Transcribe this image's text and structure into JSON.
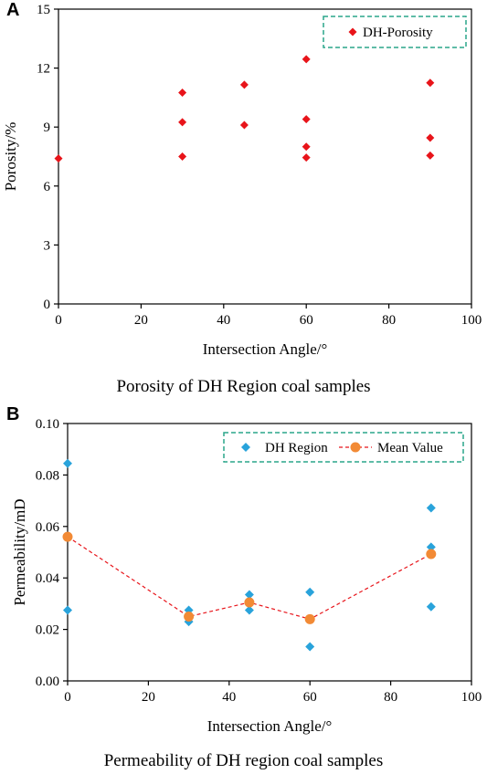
{
  "panels": [
    {
      "letter": "A",
      "caption": "Porosity of DH Region coal samples"
    },
    {
      "letter": "B",
      "caption": "Permeability of DH region coal samples"
    }
  ],
  "colors": {
    "porosity_marker": "#e8141a",
    "region_marker": "#29a3db",
    "mean_marker": "#f28a35",
    "mean_line": "#e8141a",
    "legend_border": "#2aa58a"
  },
  "chart_data": [
    {
      "type": "scatter",
      "xlabel": "Intersection Angle/°",
      "ylabel": "Porosity/%",
      "xlim": [
        0,
        100
      ],
      "ylim": [
        0,
        15
      ],
      "xticks": [
        0,
        20,
        40,
        60,
        80,
        100
      ],
      "yticks": [
        0,
        3,
        6,
        9,
        12,
        15
      ],
      "legend_position": "top-right",
      "grid": false,
      "series": [
        {
          "name": "DH-Porosity",
          "marker": "diamond",
          "points": [
            [
              0,
              7.4
            ],
            [
              30,
              10.75
            ],
            [
              30,
              9.25
            ],
            [
              30,
              7.5
            ],
            [
              45,
              11.15
            ],
            [
              45,
              9.1
            ],
            [
              60,
              12.45
            ],
            [
              60,
              9.4
            ],
            [
              60,
              8.0
            ],
            [
              60,
              7.45
            ],
            [
              90,
              11.25
            ],
            [
              90,
              8.45
            ],
            [
              90,
              7.55
            ]
          ]
        }
      ]
    },
    {
      "type": "scatter",
      "xlabel": "Intersection Angle/°",
      "ylabel": "Permeability/mD",
      "xlim": [
        0,
        100
      ],
      "ylim": [
        0,
        0.1
      ],
      "xticks": [
        0,
        20,
        40,
        60,
        80,
        100
      ],
      "yticks": [
        "0.00",
        "0.02",
        "0.04",
        "0.06",
        "0.08",
        "0.10"
      ],
      "legend_position": "top-right",
      "grid": false,
      "series": [
        {
          "name": "DH Region",
          "marker": "diamond",
          "points": [
            [
              0,
              0.0845
            ],
            [
              0,
              0.0275
            ],
            [
              30,
              0.0275
            ],
            [
              30,
              0.023
            ],
            [
              45,
              0.0335
            ],
            [
              45,
              0.0275
            ],
            [
              60,
              0.0345
            ],
            [
              60,
              0.0133
            ],
            [
              90,
              0.0672
            ],
            [
              90,
              0.052
            ],
            [
              90,
              0.0288
            ]
          ]
        },
        {
          "name": "Mean Value",
          "marker": "circle",
          "line": "dashed",
          "points": [
            [
              0,
              0.056
            ],
            [
              30,
              0.025
            ],
            [
              45,
              0.0305
            ],
            [
              60,
              0.024
            ],
            [
              90,
              0.0493
            ]
          ]
        }
      ]
    }
  ]
}
